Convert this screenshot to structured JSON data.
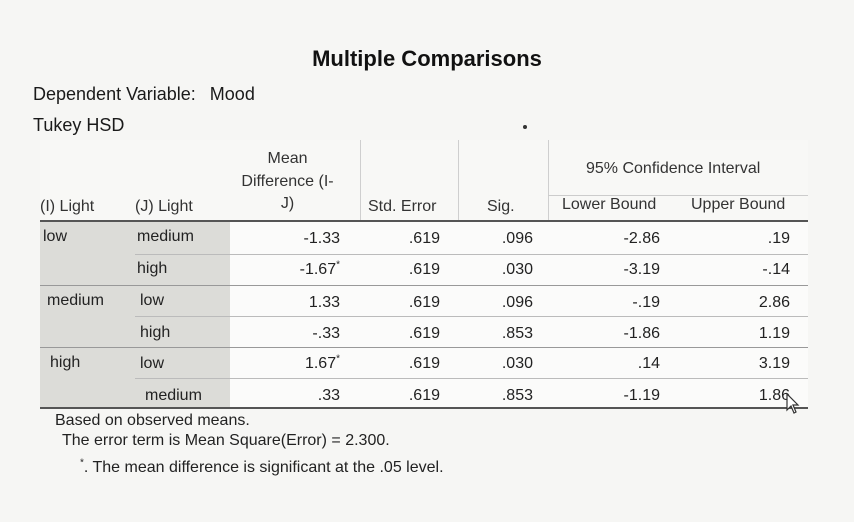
{
  "title": "Multiple Comparisons",
  "dependent_variable": {
    "label": "Dependent Variable:",
    "value": "Mood"
  },
  "method": "Tukey HSD",
  "headers": {
    "i_light": "(I) Light",
    "j_light": "(J) Light",
    "mean_diff": [
      "Mean",
      "Difference (I-",
      "J)"
    ],
    "std_error": "Std. Error",
    "sig": "Sig.",
    "ci_group": "95% Confidence Interval",
    "lower": "Lower Bound",
    "upper": "Upper Bound"
  },
  "rows": [
    {
      "i": "low",
      "j": "medium",
      "mean": "-1.33",
      "star": "",
      "se": ".619",
      "sig": ".096",
      "lower": "-2.86",
      "upper": ".19"
    },
    {
      "i": "",
      "j": "high",
      "mean": "-1.67",
      "star": "*",
      "se": ".619",
      "sig": ".030",
      "lower": "-3.19",
      "upper": "-.14"
    },
    {
      "i": "medium",
      "j": "low",
      "mean": "1.33",
      "star": "",
      "se": ".619",
      "sig": ".096",
      "lower": "-.19",
      "upper": "2.86"
    },
    {
      "i": "",
      "j": "high",
      "mean": "-.33",
      "star": "",
      "se": ".619",
      "sig": ".853",
      "lower": "-1.86",
      "upper": "1.19"
    },
    {
      "i": "high",
      "j": "low",
      "mean": "1.67",
      "star": "*",
      "se": ".619",
      "sig": ".030",
      "lower": ".14",
      "upper": "3.19"
    },
    {
      "i": "",
      "j": "medium",
      "mean": ".33",
      "star": "",
      "se": ".619",
      "sig": ".853",
      "lower": "-1.19",
      "upper": "1.86"
    }
  ],
  "footnotes": {
    "line1": "Based on observed means.",
    "line2": "The error term is Mean Square(Error) = 2.300.",
    "star_mark": "*",
    "line3": ". The mean difference is significant at the .05 level."
  }
}
